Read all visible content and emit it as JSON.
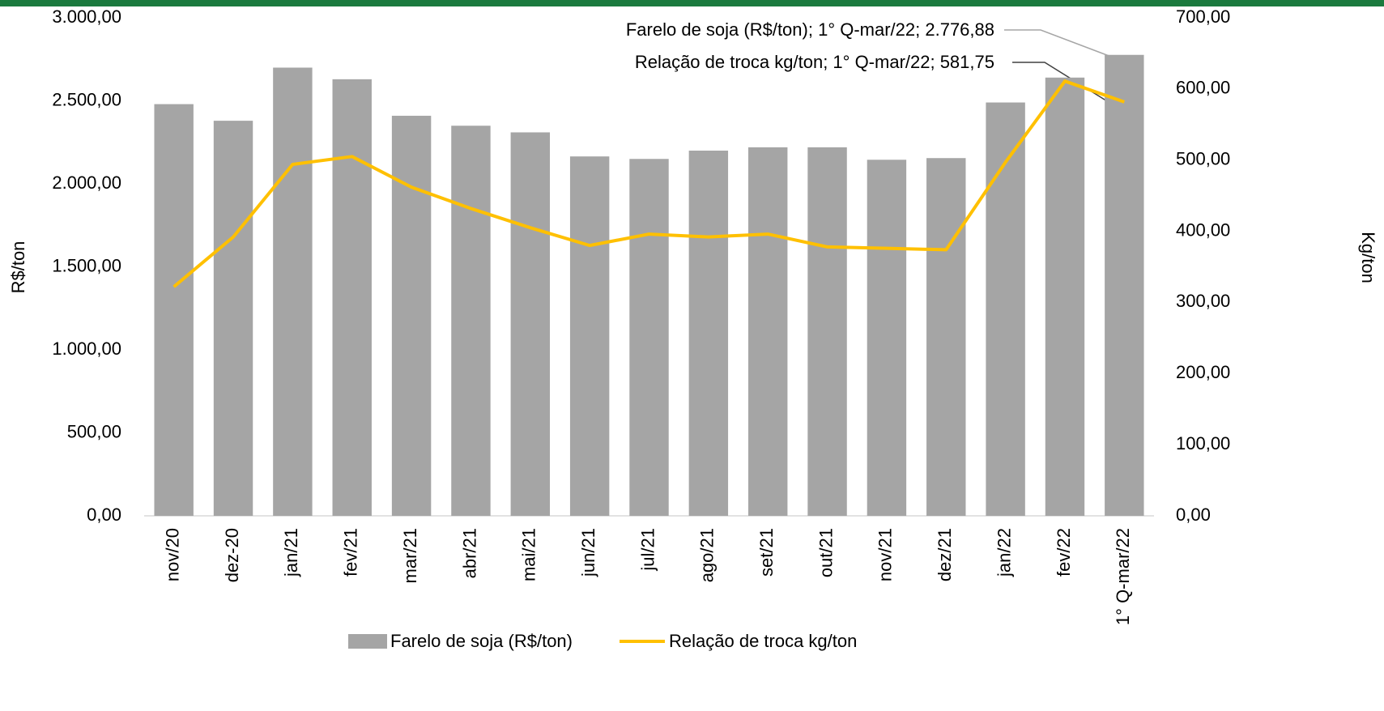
{
  "chart_data": {
    "type": "bar",
    "categories": [
      "nov/20",
      "dez-20",
      "jan/21",
      "fev/21",
      "mar/21",
      "abr/21",
      "mai/21",
      "jun/21",
      "jul/21",
      "ago/21",
      "set/21",
      "out/21",
      "nov/21",
      "dez/21",
      "jan/22",
      "fev/22",
      "1° Q-mar/22"
    ],
    "series": [
      {
        "name": "Farelo de soja (R$/ton)",
        "type": "bar",
        "color": "#a5a5a5",
        "values": [
          2480,
          2380,
          2700,
          2630,
          2410,
          2350,
          2310,
          2165,
          2150,
          2200,
          2220,
          2220,
          2145,
          2155,
          2490,
          2640,
          2776.88
        ]
      },
      {
        "name": "Relação de troca kg/ton",
        "type": "line",
        "axis": "y2",
        "color": "#ffc000",
        "values": [
          322,
          392,
          494,
          505,
          462,
          432,
          405,
          380,
          396,
          392,
          396,
          378,
          376,
          374,
          497,
          611,
          581.75
        ]
      }
    ],
    "ylabel": "R$/ton",
    "y2label": "Kg/ton",
    "ylim": [
      0,
      3000
    ],
    "yticks": [
      {
        "value": 0,
        "label": "0,00"
      },
      {
        "value": 500,
        "label": "500,00"
      },
      {
        "value": 1000,
        "label": "1.000,00"
      },
      {
        "value": 1500,
        "label": "1.500,00"
      },
      {
        "value": 2000,
        "label": "2.000,00"
      },
      {
        "value": 2500,
        "label": "2.500,00"
      },
      {
        "value": 3000,
        "label": "3.000,00"
      }
    ],
    "y2lim": [
      0,
      700
    ],
    "y2ticks": [
      {
        "value": 0,
        "label": "0,00"
      },
      {
        "value": 100,
        "label": "100,00"
      },
      {
        "value": 200,
        "label": "200,00"
      },
      {
        "value": 300,
        "label": "300,00"
      },
      {
        "value": 400,
        "label": "400,00"
      },
      {
        "value": 500,
        "label": "500,00"
      },
      {
        "value": 600,
        "label": "600,00"
      },
      {
        "value": 700,
        "label": "700,00"
      }
    ],
    "annotations": [
      "Farelo de soja (R$/ton); 1° Q-mar/22; 2.776,88",
      "Relação de troca kg/ton; 1° Q-mar/22; 581,75"
    ],
    "legend": "bottom",
    "grid": false
  }
}
